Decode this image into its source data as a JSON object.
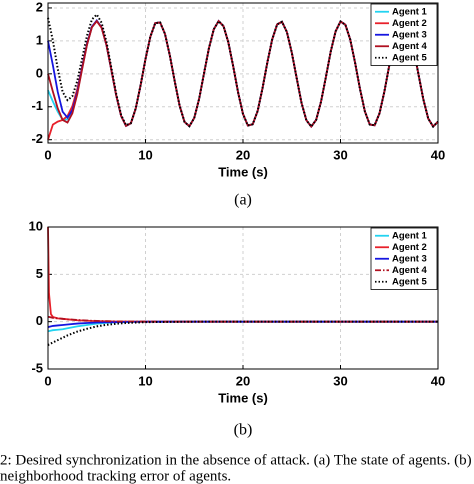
{
  "chart_data": [
    {
      "type": "line",
      "xlabel": "Time (s)",
      "label": "(a)",
      "xlim": [
        0,
        40
      ],
      "ylim": [
        -2.1,
        2.15
      ],
      "xticks": [
        0,
        10,
        20,
        30,
        40
      ],
      "yticks": [
        -2,
        -1,
        0,
        1,
        2
      ],
      "grid": true,
      "legend": "upper right",
      "x": [
        0,
        0.5,
        1,
        1.5,
        2,
        2.5,
        3,
        3.5,
        4,
        4.5,
        5,
        5.5,
        6,
        6.5,
        7,
        7.5,
        8,
        8.5,
        9,
        9.5,
        10,
        10.5,
        11,
        11.5,
        12,
        12.5,
        13,
        13.5,
        14,
        14.5,
        15,
        15.5,
        16,
        16.5,
        17,
        17.5,
        18,
        18.5,
        19,
        19.5,
        20,
        20.5,
        21,
        21.5,
        22,
        22.5,
        23,
        23.5,
        24,
        24.5,
        25,
        25.5,
        26,
        26.5,
        27,
        27.5,
        28,
        28.5,
        29,
        29.5,
        30,
        30.5,
        31,
        31.5,
        32,
        32.5,
        33,
        33.5,
        34,
        34.5,
        35,
        35.5,
        36,
        36.5,
        37,
        37.5,
        38,
        38.5,
        39,
        39.5,
        40
      ],
      "series": [
        {
          "name": "Agent 1",
          "color": "#22d3f0",
          "dash": "solid",
          "values": [
            -0.5,
            -0.84,
            -1.15,
            -1.4,
            -1.38,
            -1.13,
            -0.57,
            0.17,
            0.89,
            1.42,
            1.61,
            1.4,
            0.87,
            0.11,
            -0.66,
            -1.28,
            -1.58,
            -1.5,
            -1.05,
            -0.34,
            0.45,
            1.13,
            1.54,
            1.56,
            1.21,
            0.55,
            -0.23,
            -0.97,
            -1.46,
            -1.59,
            -1.34,
            -0.76,
            0.01,
            0.77,
            1.35,
            1.6,
            1.45,
            0.95,
            0.22,
            -0.57,
            -1.22,
            -1.57,
            -1.53,
            -1.13,
            -0.44,
            0.35,
            1.05,
            1.5,
            1.58,
            1.27,
            0.65,
            -0.12,
            -0.88,
            -1.41,
            -1.6,
            -1.4,
            -0.85,
            -0.1,
            0.68,
            1.29,
            1.59,
            1.49,
            1.04,
            0.33,
            -0.46,
            -1.14,
            -1.54,
            -1.56,
            -1.2,
            -0.54,
            0.25,
            0.97,
            1.46,
            1.59,
            1.34,
            0.75,
            -0.02,
            -0.78,
            -1.36,
            -1.6,
            -1.45
          ]
        },
        {
          "name": "Agent 2",
          "color": "#e8202a",
          "dash": "solid",
          "values": [
            -2.0,
            -1.54,
            -1.45,
            -1.4,
            -1.28,
            -0.98,
            -0.47,
            0.21,
            0.91,
            1.42,
            1.6,
            1.4,
            0.87,
            0.11,
            -0.66,
            -1.28,
            -1.58,
            -1.5,
            -1.05,
            -0.34,
            0.45,
            1.13,
            1.54,
            1.56,
            1.21,
            0.55,
            -0.23,
            -0.97,
            -1.46,
            -1.59,
            -1.34,
            -0.76,
            0.01,
            0.77,
            1.35,
            1.6,
            1.45,
            0.95,
            0.22,
            -0.57,
            -1.22,
            -1.57,
            -1.53,
            -1.13,
            -0.44,
            0.35,
            1.05,
            1.5,
            1.58,
            1.27,
            0.65,
            -0.12,
            -0.88,
            -1.41,
            -1.6,
            -1.4,
            -0.85,
            -0.1,
            0.68,
            1.29,
            1.59,
            1.49,
            1.04,
            0.33,
            -0.46,
            -1.14,
            -1.54,
            -1.56,
            -1.2,
            -0.54,
            0.25,
            0.97,
            1.46,
            1.59,
            1.34,
            0.75,
            -0.02,
            -0.78,
            -1.36,
            -1.6,
            -1.45
          ]
        },
        {
          "name": "Agent 3",
          "color": "#1515e0",
          "dash": "solid",
          "values": [
            1.0,
            0.26,
            -0.55,
            -1.15,
            -1.33,
            -1.1,
            -0.55,
            0.19,
            0.91,
            1.43,
            1.62,
            1.41,
            0.87,
            0.11,
            -0.66,
            -1.28,
            -1.58,
            -1.5,
            -1.05,
            -0.34,
            0.45,
            1.13,
            1.54,
            1.56,
            1.21,
            0.55,
            -0.23,
            -0.97,
            -1.46,
            -1.59,
            -1.34,
            -0.76,
            0.01,
            0.77,
            1.35,
            1.6,
            1.45,
            0.95,
            0.22,
            -0.57,
            -1.22,
            -1.57,
            -1.53,
            -1.13,
            -0.44,
            0.35,
            1.05,
            1.5,
            1.58,
            1.27,
            0.65,
            -0.12,
            -0.88,
            -1.41,
            -1.6,
            -1.4,
            -0.85,
            -0.1,
            0.68,
            1.29,
            1.59,
            1.49,
            1.04,
            0.33,
            -0.46,
            -1.14,
            -1.54,
            -1.56,
            -1.2,
            -0.54,
            0.25,
            0.97,
            1.46,
            1.59,
            1.34,
            0.75,
            -0.02,
            -0.78,
            -1.36,
            -1.6,
            -1.45
          ]
        },
        {
          "name": "Agent 4",
          "color": "#b01020",
          "dash": "solid",
          "values": [
            0.0,
            -0.54,
            -1.05,
            -1.4,
            -1.48,
            -1.2,
            -0.62,
            0.14,
            0.88,
            1.41,
            1.6,
            1.4,
            0.87,
            0.11,
            -0.66,
            -1.28,
            -1.58,
            -1.5,
            -1.05,
            -0.34,
            0.45,
            1.13,
            1.54,
            1.56,
            1.21,
            0.55,
            -0.23,
            -0.97,
            -1.46,
            -1.59,
            -1.34,
            -0.76,
            0.01,
            0.77,
            1.35,
            1.6,
            1.45,
            0.95,
            0.22,
            -0.57,
            -1.22,
            -1.57,
            -1.53,
            -1.13,
            -0.44,
            0.35,
            1.05,
            1.5,
            1.58,
            1.27,
            0.65,
            -0.12,
            -0.88,
            -1.41,
            -1.6,
            -1.4,
            -0.85,
            -0.1,
            0.68,
            1.29,
            1.59,
            1.49,
            1.04,
            0.33,
            -0.46,
            -1.14,
            -1.54,
            -1.56,
            -1.2,
            -0.54,
            0.25,
            0.97,
            1.46,
            1.59,
            1.34,
            0.75,
            -0.02,
            -0.78,
            -1.36,
            -1.6,
            -1.45
          ]
        },
        {
          "name": "Agent 5",
          "color": "#000000",
          "dash": "dotted",
          "values": [
            1.7,
            1.01,
            0.15,
            -0.55,
            -0.8,
            -0.68,
            -0.22,
            0.46,
            1.16,
            1.65,
            1.8,
            1.55,
            0.97,
            0.18,
            -0.61,
            -1.25,
            -1.56,
            -1.5,
            -1.05,
            -0.34,
            0.45,
            1.13,
            1.54,
            1.56,
            1.21,
            0.55,
            -0.23,
            -0.97,
            -1.46,
            -1.59,
            -1.34,
            -0.76,
            0.01,
            0.77,
            1.35,
            1.6,
            1.45,
            0.95,
            0.22,
            -0.57,
            -1.22,
            -1.57,
            -1.53,
            -1.13,
            -0.44,
            0.35,
            1.05,
            1.5,
            1.58,
            1.27,
            0.65,
            -0.12,
            -0.88,
            -1.41,
            -1.6,
            -1.4,
            -0.85,
            -0.1,
            0.68,
            1.29,
            1.59,
            1.49,
            1.04,
            0.33,
            -0.46,
            -1.14,
            -1.54,
            -1.56,
            -1.2,
            -0.54,
            0.25,
            0.97,
            1.46,
            1.59,
            1.34,
            0.75,
            -0.02,
            -0.78,
            -1.36,
            -1.6,
            -1.45
          ]
        }
      ]
    },
    {
      "type": "line",
      "xlabel": "Time (s)",
      "label": "(b)",
      "xlim": [
        0,
        40
      ],
      "ylim": [
        -5,
        10
      ],
      "xticks": [
        0,
        10,
        20,
        30,
        40
      ],
      "yticks": [
        -5,
        0,
        5,
        10
      ],
      "grid": true,
      "legend": "upper right",
      "x": [
        0,
        0.1,
        0.3,
        0.5,
        1,
        1.5,
        2,
        3,
        4,
        5,
        6,
        7,
        8,
        10,
        15,
        20,
        30,
        40
      ],
      "series": [
        {
          "name": "Agent 1",
          "color": "#22d3f0",
          "dash": "solid",
          "values": [
            -1.0,
            -1.0,
            -0.95,
            -0.9,
            -0.85,
            -0.8,
            -0.7,
            -0.5,
            -0.35,
            -0.2,
            -0.12,
            -0.07,
            -0.04,
            -0.01,
            0,
            0,
            0,
            0
          ]
        },
        {
          "name": "Agent 2",
          "color": "#e8202a",
          "dash": "solid",
          "values": [
            10,
            3,
            0.8,
            0.5,
            0.35,
            0.3,
            0.25,
            0.15,
            0.1,
            0.06,
            0.04,
            0.02,
            0.01,
            0,
            0,
            0,
            0,
            0
          ]
        },
        {
          "name": "Agent 3",
          "color": "#1515e0",
          "dash": "solid",
          "values": [
            -0.6,
            -0.55,
            -0.5,
            -0.45,
            -0.4,
            -0.35,
            -0.3,
            -0.2,
            -0.14,
            -0.09,
            -0.06,
            -0.04,
            -0.02,
            0,
            0,
            0,
            0,
            0
          ]
        },
        {
          "name": "Agent 4",
          "color": "#b01020",
          "dash": "dashdot",
          "values": [
            0.5,
            0.5,
            0.45,
            0.4,
            0.35,
            0.3,
            0.25,
            0.18,
            0.12,
            0.08,
            0.05,
            0.03,
            0.02,
            0.01,
            0,
            0,
            0,
            0
          ]
        },
        {
          "name": "Agent 5",
          "color": "#000000",
          "dash": "dotted",
          "values": [
            -2.5,
            -2.4,
            -2.3,
            -2.2,
            -1.95,
            -1.7,
            -1.45,
            -1.05,
            -0.75,
            -0.5,
            -0.33,
            -0.22,
            -0.14,
            -0.05,
            0,
            0,
            0,
            0
          ]
        }
      ]
    }
  ],
  "caption": [
    "2: Desired synchronization in the absence of attack. (a) The state of agents. (b)",
    "neighborhood tracking error of agents."
  ]
}
